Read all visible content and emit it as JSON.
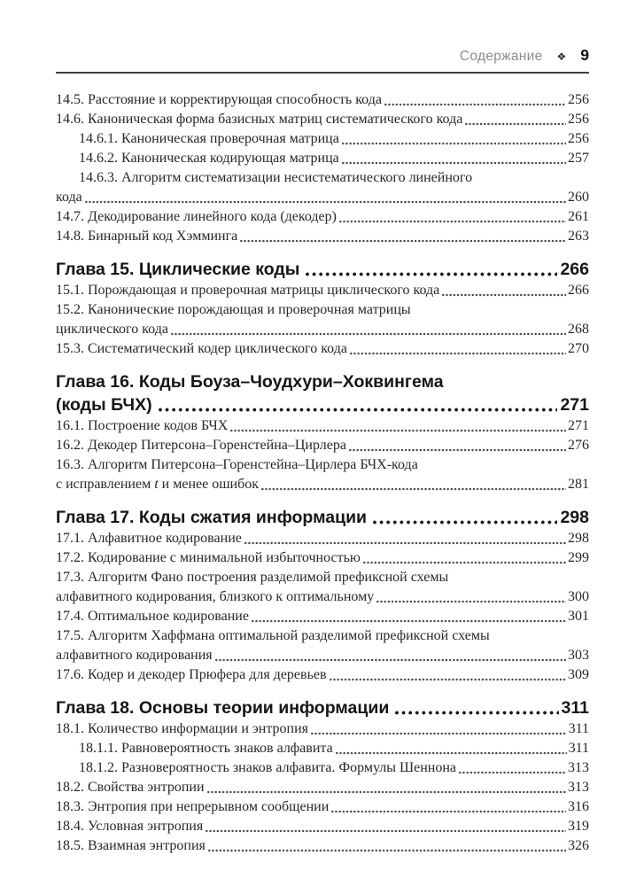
{
  "colors": {
    "ink": "#272727",
    "chapter-ink": "#161616",
    "muted": "#8d8d8d",
    "rule": "#3e3e3e",
    "leader": "#474747"
  },
  "header": {
    "running_title": "Содержание",
    "separator_icon": "❖",
    "page_number": "9"
  },
  "toc": {
    "items": [
      {
        "type": "entry",
        "lines": [
          "14.5. Расстояние и корректирующая способность кода"
        ],
        "page": "256"
      },
      {
        "type": "entry",
        "lines": [
          "14.6. Каноническая форма базисных матриц систематического кода"
        ],
        "page": "256"
      },
      {
        "type": "sub",
        "lines": [
          "14.6.1. Каноническая проверочная матрица"
        ],
        "page": "256"
      },
      {
        "type": "sub",
        "lines": [
          "14.6.2. Каноническая кодирующая матрица"
        ],
        "page": "257"
      },
      {
        "type": "sub",
        "lines": [
          "14.6.3. Алгоритм систематизации несистематического линейного",
          "кода"
        ],
        "page": "260"
      },
      {
        "type": "entry",
        "lines": [
          "14.7. Декодирование линейного кода (декодер)"
        ],
        "page": "261"
      },
      {
        "type": "entry",
        "lines": [
          "14.8. Бинарный код Хэмминга"
        ],
        "page": "263"
      },
      {
        "type": "chapter",
        "lines": [
          "Глава 15. Циклические коды"
        ],
        "page": "266"
      },
      {
        "type": "entry",
        "lines": [
          "15.1. Порождающая и проверочная матрицы циклического кода"
        ],
        "page": "266"
      },
      {
        "type": "entry",
        "lines": [
          "15.2. Канонические порождающая и проверочная матрицы",
          "циклического кода"
        ],
        "page": "268"
      },
      {
        "type": "entry",
        "lines": [
          "15.3. Систематический кодер циклического кода"
        ],
        "page": "270"
      },
      {
        "type": "chapter",
        "lines": [
          "Глава 16. Коды Боуза–Чоудхури–Хоквингема",
          "(коды БЧХ)"
        ],
        "page": "271"
      },
      {
        "type": "entry",
        "lines": [
          "16.1. Построение кодов БЧХ"
        ],
        "page": "271"
      },
      {
        "type": "entry",
        "lines": [
          "16.2. Декодер Питерсона–Горенстейна–Цирлера"
        ],
        "page": "276"
      },
      {
        "type": "entry",
        "lines": [
          "16.3. Алгоритм Питерсона–Горенстейна–Цирлера БЧХ-кода",
          [
            {
              "t": "с исправлением "
            },
            {
              "t": "t",
              "i": true
            },
            {
              "t": " и менее ошибок"
            }
          ]
        ],
        "page": "281"
      },
      {
        "type": "chapter",
        "lines": [
          "Глава 17. Коды сжатия информации"
        ],
        "page": "298"
      },
      {
        "type": "entry",
        "lines": [
          "17.1. Алфавитное кодирование"
        ],
        "page": "298"
      },
      {
        "type": "entry",
        "lines": [
          "17.2. Кодирование с минимальной избыточностью"
        ],
        "page": "299"
      },
      {
        "type": "entry",
        "lines": [
          "17.3. Алгоритм Фано построения разделимой префиксной схемы",
          "алфавитного кодирования, близкого к оптимальному"
        ],
        "page": "300"
      },
      {
        "type": "entry",
        "lines": [
          "17.4. Оптимальное кодирование"
        ],
        "page": "301"
      },
      {
        "type": "entry",
        "lines": [
          "17.5. Алгоритм Хаффмана оптимальной разделимой префиксной схемы",
          "алфавитного кодирования"
        ],
        "page": "303"
      },
      {
        "type": "entry",
        "lines": [
          "17.6. Кодер и декодер Прюфера для деревьев"
        ],
        "page": "309"
      },
      {
        "type": "chapter",
        "lines": [
          "Глава 18. Основы теории информации"
        ],
        "page": "311"
      },
      {
        "type": "entry",
        "lines": [
          "18.1. Количество информации и энтропия"
        ],
        "page": "311"
      },
      {
        "type": "sub",
        "lines": [
          "18.1.1. Равновероятность знаков алфавита"
        ],
        "page": "311"
      },
      {
        "type": "sub",
        "lines": [
          "18.1.2. Разновероятность знаков алфавита. Формулы Шеннона"
        ],
        "page": "313"
      },
      {
        "type": "entry",
        "lines": [
          "18.2. Свойства энтропии"
        ],
        "page": "313"
      },
      {
        "type": "entry",
        "lines": [
          "18.3. Энтропия при непрерывном сообщении"
        ],
        "page": "316"
      },
      {
        "type": "entry",
        "lines": [
          "18.4. Условная энтропия"
        ],
        "page": "319"
      },
      {
        "type": "entry",
        "lines": [
          "18.5. Взаимная энтропия"
        ],
        "page": "326"
      }
    ]
  }
}
